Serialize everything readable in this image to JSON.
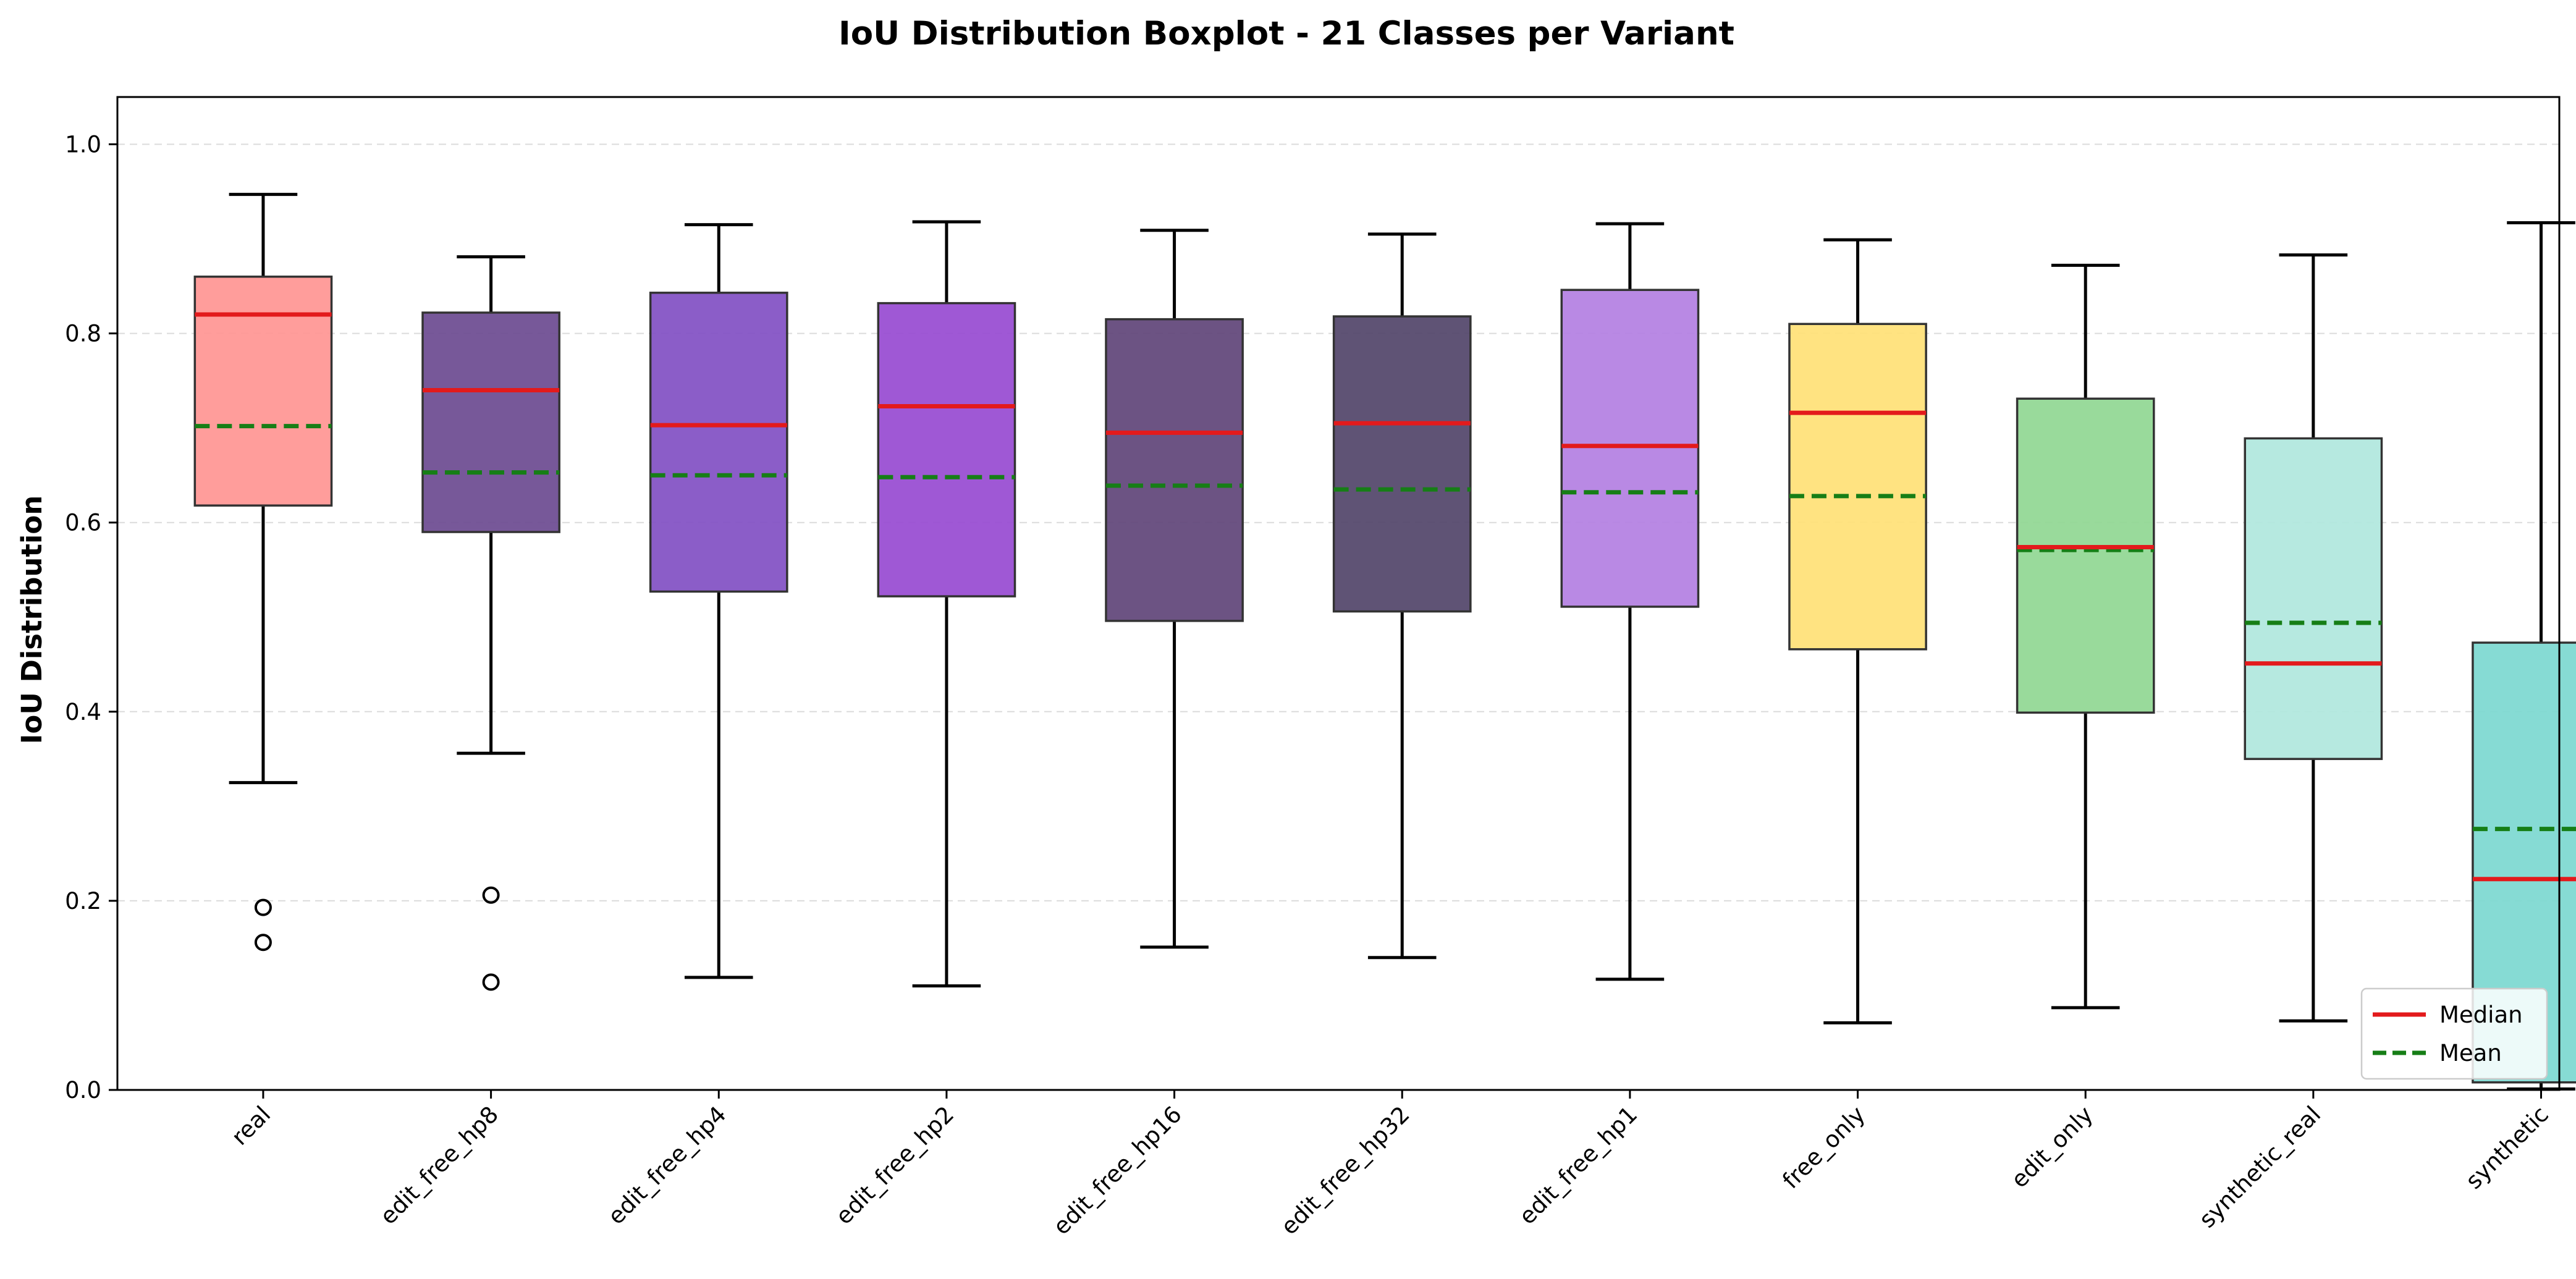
{
  "chart_data": {
    "type": "boxplot",
    "title": "IoU Distribution Boxplot - 21 Classes per Variant",
    "xlabel": "",
    "ylabel": "IoU Distribution",
    "ylim": [
      0.0,
      1.05
    ],
    "yticks": [
      0.0,
      0.2,
      0.4,
      0.6,
      0.8,
      1.0
    ],
    "ytick_labels": [
      "0.0",
      "0.2",
      "0.4",
      "0.6",
      "0.8",
      "1.0"
    ],
    "grid": "horizontal dashed",
    "legend": {
      "position": "bottom-right",
      "entries": [
        {
          "label": "Median",
          "color": "#e31a1c",
          "style": "solid"
        },
        {
          "label": "Mean",
          "color": "#167e16",
          "style": "dashed"
        }
      ]
    },
    "median_color": "#e31a1c",
    "mean_color": "#167e16",
    "categories": [
      "real",
      "edit_free_hp8",
      "edit_free_hp4",
      "edit_free_hp2",
      "edit_free_hp16",
      "edit_free_hp32",
      "edit_free_hp1",
      "free_only",
      "edit_only",
      "synthetic_real",
      "synthetic"
    ],
    "boxes": [
      {
        "name": "real",
        "whisker_low": 0.325,
        "q1": 0.618,
        "median": 0.82,
        "mean": 0.702,
        "q3": 0.86,
        "whisker_high": 0.947,
        "outliers": [
          0.193,
          0.156
        ],
        "color": "#ff9896"
      },
      {
        "name": "edit_free_hp8",
        "whisker_low": 0.356,
        "q1": 0.59,
        "median": 0.74,
        "mean": 0.653,
        "q3": 0.822,
        "whisker_high": 0.881,
        "outliers": [
          0.206,
          0.114
        ],
        "color": "#704f93"
      },
      {
        "name": "edit_free_hp4",
        "whisker_low": 0.119,
        "q1": 0.527,
        "median": 0.703,
        "mean": 0.65,
        "q3": 0.843,
        "whisker_high": 0.915,
        "outliers": [],
        "color": "#8554c5"
      },
      {
        "name": "edit_free_hp2",
        "whisker_low": 0.11,
        "q1": 0.522,
        "median": 0.723,
        "mean": 0.648,
        "q3": 0.832,
        "whisker_high": 0.918,
        "outliers": [],
        "color": "#9a4fd3"
      },
      {
        "name": "edit_free_hp16",
        "whisker_low": 0.151,
        "q1": 0.496,
        "median": 0.695,
        "mean": 0.639,
        "q3": 0.815,
        "whisker_high": 0.909,
        "outliers": [],
        "color": "#644a7c"
      },
      {
        "name": "edit_free_hp32",
        "whisker_low": 0.14,
        "q1": 0.506,
        "median": 0.705,
        "mean": 0.635,
        "q3": 0.818,
        "whisker_high": 0.905,
        "outliers": [],
        "color": "#564a6e"
      },
      {
        "name": "edit_free_hp1",
        "whisker_low": 0.117,
        "q1": 0.511,
        "median": 0.681,
        "mean": 0.632,
        "q3": 0.846,
        "whisker_high": 0.916,
        "outliers": [],
        "color": "#b583e3"
      },
      {
        "name": "free_only",
        "whisker_low": 0.071,
        "q1": 0.466,
        "median": 0.716,
        "mean": 0.628,
        "q3": 0.81,
        "whisker_high": 0.899,
        "outliers": [],
        "color": "#ffe27a"
      },
      {
        "name": "edit_only",
        "whisker_low": 0.087,
        "q1": 0.399,
        "median": 0.574,
        "mean": 0.571,
        "q3": 0.731,
        "whisker_high": 0.872,
        "outliers": [],
        "color": "#94d896"
      },
      {
        "name": "synthetic_real",
        "whisker_low": 0.073,
        "q1": 0.35,
        "median": 0.451,
        "mean": 0.494,
        "q3": 0.689,
        "whisker_high": 0.883,
        "outliers": [],
        "color": "#b2e8de"
      },
      {
        "name": "synthetic",
        "whisker_low": 0.001,
        "q1": 0.008,
        "median": 0.223,
        "mean": 0.276,
        "q3": 0.473,
        "whisker_high": 0.917,
        "outliers": [],
        "color": "#7fd9d2"
      }
    ]
  }
}
